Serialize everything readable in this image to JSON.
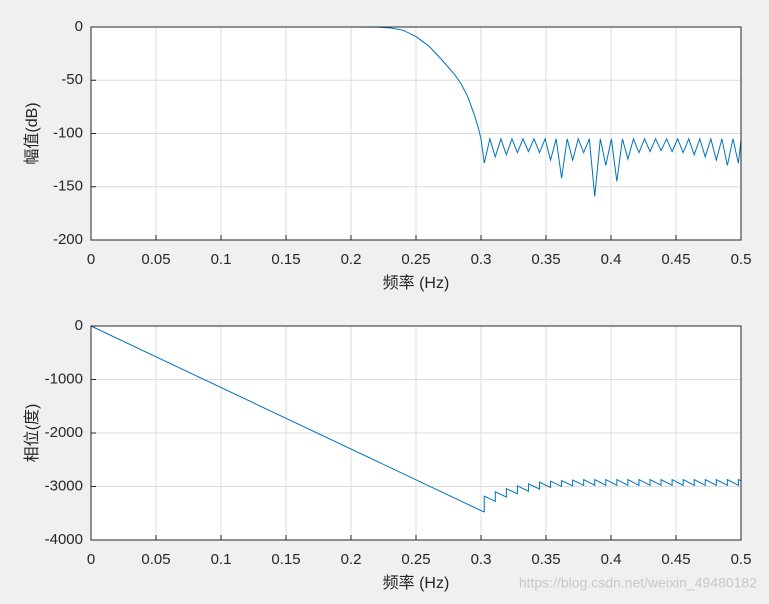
{
  "chart_data": [
    {
      "type": "line",
      "ylabel": "幅值(dB)",
      "xlabel": "频率 (Hz)",
      "color": "#0072bd",
      "grid": true,
      "xlim": [
        0,
        0.5
      ],
      "xticks": [
        0,
        0.05,
        0.1,
        0.15,
        0.2,
        0.25,
        0.3,
        0.35,
        0.4,
        0.45,
        0.5
      ],
      "ylim": [
        -200,
        0
      ],
      "yticks": [
        0,
        -50,
        -100,
        -150,
        -200
      ],
      "x": [
        0,
        0.05,
        0.1,
        0.15,
        0.2,
        0.22,
        0.23,
        0.24,
        0.25,
        0.26,
        0.27,
        0.28,
        0.285,
        0.29,
        0.295,
        0.298,
        0.3,
        0.3025,
        0.3068,
        0.311,
        0.3153,
        0.3195,
        0.3238,
        0.328,
        0.3323,
        0.3365,
        0.3408,
        0.345,
        0.3493,
        0.3535,
        0.3578,
        0.362,
        0.3663,
        0.3705,
        0.3748,
        0.379,
        0.3833,
        0.3875,
        0.3918,
        0.396,
        0.4003,
        0.4045,
        0.4088,
        0.413,
        0.4173,
        0.4215,
        0.4258,
        0.43,
        0.4343,
        0.4385,
        0.4428,
        0.447,
        0.4513,
        0.4555,
        0.4598,
        0.464,
        0.4683,
        0.4725,
        0.4768,
        0.481,
        0.4853,
        0.4895,
        0.4938,
        0.498,
        0.5
      ],
      "values": [
        0,
        0,
        0,
        0,
        0,
        -0.1,
        -0.8,
        -3,
        -9,
        -18,
        -31,
        -45,
        -54,
        -66,
        -83,
        -95,
        -105,
        -128,
        -105,
        -122,
        -105,
        -120,
        -105,
        -118,
        -105,
        -117,
        -105,
        -118,
        -105,
        -125,
        -105,
        -142,
        -105,
        -125,
        -105,
        -118,
        -105,
        -159,
        -105,
        -130,
        -105,
        -145,
        -105,
        -124,
        -105,
        -118,
        -105,
        -117,
        -105,
        -116,
        -105,
        -117,
        -105,
        -118,
        -105,
        -120,
        -105,
        -122,
        -105,
        -125,
        -105,
        -130,
        -105,
        -128,
        -106
      ]
    },
    {
      "type": "line",
      "ylabel": "相位(度)",
      "xlabel": "频率 (Hz)",
      "color": "#0072bd",
      "grid": true,
      "xlim": [
        0,
        0.5
      ],
      "xticks": [
        0,
        0.05,
        0.1,
        0.15,
        0.2,
        0.25,
        0.3,
        0.35,
        0.4,
        0.45,
        0.5
      ],
      "ylim": [
        -4000,
        0
      ],
      "yticks": [
        0,
        -1000,
        -2000,
        -3000,
        -4000
      ],
      "x": [
        0,
        0.3,
        0.3025,
        0.3025,
        0.311,
        0.311,
        0.3195,
        0.3195,
        0.328,
        0.328,
        0.3365,
        0.3365,
        0.345,
        0.345,
        0.3535,
        0.3535,
        0.362,
        0.362,
        0.3705,
        0.3705,
        0.379,
        0.379,
        0.3875,
        0.3875,
        0.396,
        0.396,
        0.4045,
        0.4045,
        0.413,
        0.413,
        0.4215,
        0.4215,
        0.43,
        0.43,
        0.4385,
        0.4385,
        0.447,
        0.447,
        0.4555,
        0.4555,
        0.464,
        0.464,
        0.4725,
        0.4725,
        0.481,
        0.481,
        0.4895,
        0.4895,
        0.498,
        0.498,
        0.5
      ],
      "values": [
        0,
        -3450,
        -3475,
        -3180,
        -3278,
        -3100,
        -3198,
        -3040,
        -3138,
        -2990,
        -3088,
        -2950,
        -3048,
        -2920,
        -3018,
        -2900,
        -2998,
        -2890,
        -2988,
        -2880,
        -2978,
        -2870,
        -2978,
        -2870,
        -2978,
        -2870,
        -2978,
        -2870,
        -2978,
        -2870,
        -2978,
        -2870,
        -2978,
        -2870,
        -2978,
        -2870,
        -2978,
        -2870,
        -2978,
        -2870,
        -2978,
        -2870,
        -2978,
        -2870,
        -2978,
        -2870,
        -2978,
        -2870,
        -2978,
        -2870,
        -2893
      ]
    }
  ],
  "watermark": "https://blog.csdn.net/weixin_49480182"
}
